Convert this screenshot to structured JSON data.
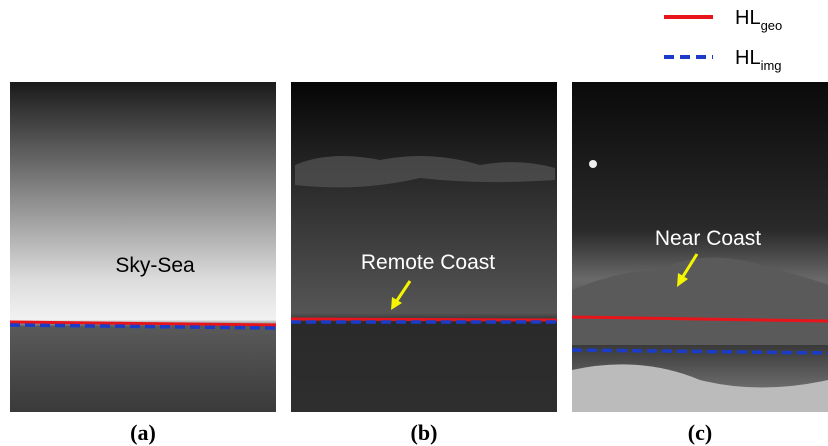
{
  "legend": [
    {
      "main": "HL",
      "sub": "geo"
    },
    {
      "main": "HL",
      "sub": "img"
    }
  ],
  "panels": [
    {
      "annotation": "Sky-Sea",
      "caption": "(a)"
    },
    {
      "annotation": "Remote Coast",
      "caption": "(b)"
    },
    {
      "annotation": "Near Coast",
      "caption": "(c)"
    }
  ]
}
